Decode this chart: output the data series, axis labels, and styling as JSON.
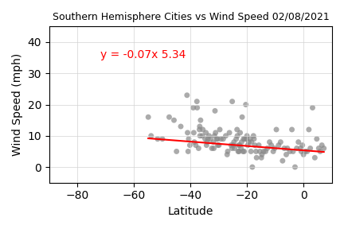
{
  "title": "Southern Hemisphere Cities vs Wind Speed 02/08/2021",
  "xlabel": "Latitude",
  "ylabel": "Wind Speed (mph)",
  "equation_text": "y = -0.07x 5.34",
  "equation_color": "red",
  "equation_x": -72,
  "equation_y": 35,
  "slope": -0.07,
  "intercept": 5.34,
  "line_x_start": -55.0,
  "line_x_end": 7.1,
  "line_color": "red",
  "scatter_color": "#888888",
  "scatter_alpha": 0.7,
  "scatter_size": 25,
  "xlim": [
    -90,
    10
  ],
  "ylim": [
    -5,
    45
  ],
  "xticks": [
    -80,
    -60,
    -40,
    -20,
    0
  ],
  "yticks": [
    0,
    10,
    20,
    30,
    40
  ],
  "grid": true,
  "figsize": [
    4.32,
    2.88
  ],
  "dpi": 100,
  "latitudes": [
    -55.0,
    -54.0,
    -51.7,
    -50.0,
    -47.6,
    -45.9,
    -45.0,
    -43.5,
    -41.3,
    -41.1,
    -40.9,
    -40.7,
    -40.3,
    -39.1,
    -38.9,
    -38.7,
    -38.2,
    -37.8,
    -37.7,
    -37.2,
    -36.9,
    -36.8,
    -36.7,
    -36.5,
    -35.9,
    -35.7,
    -34.9,
    -34.6,
    -34.4,
    -34.2,
    -33.9,
    -33.5,
    -33.0,
    -32.5,
    -32.0,
    -31.8,
    -31.6,
    -31.4,
    -31.2,
    -30.8,
    -30.5,
    -30.4,
    -30.0,
    -29.7,
    -29.3,
    -28.5,
    -27.6,
    -27.1,
    -26.9,
    -26.3,
    -25.7,
    -25.4,
    -25.3,
    -24.9,
    -24.7,
    -24.5,
    -23.9,
    -23.6,
    -23.5,
    -23.2,
    -23.0,
    -22.9,
    -22.7,
    -22.5,
    -22.2,
    -22.0,
    -21.8,
    -21.5,
    -21.3,
    -21.1,
    -20.9,
    -20.5,
    -20.3,
    -20.1,
    -19.8,
    -19.5,
    -19.0,
    -18.7,
    -18.5,
    -18.2,
    -17.8,
    -17.6,
    -17.3,
    -16.9,
    -16.7,
    -15.9,
    -15.5,
    -15.0,
    -14.8,
    -14.2,
    -13.5,
    -12.9,
    -12.1,
    -11.5,
    -10.8,
    -10.3,
    -9.7,
    -8.9,
    -8.2,
    -7.5,
    -6.9,
    -6.2,
    -5.8,
    -4.9,
    -4.2,
    -3.8,
    -3.1,
    -2.5,
    -1.9,
    -1.2,
    -0.9,
    -0.5,
    -0.1,
    0.5,
    1.2,
    1.8,
    2.3,
    3.1,
    3.9,
    4.6,
    5.3,
    5.8,
    6.4,
    7.1
  ],
  "wind_speeds": [
    16,
    10,
    9,
    9,
    16,
    15,
    5,
    13,
    23,
    11,
    5,
    9,
    7,
    19,
    11,
    8,
    7,
    21,
    19,
    6,
    12,
    13,
    10,
    15,
    10,
    12,
    9,
    11,
    7,
    8,
    9,
    10,
    9,
    6,
    8,
    6,
    10,
    18,
    11,
    9,
    9,
    7,
    7,
    12,
    9,
    9,
    10,
    4,
    5,
    11,
    7,
    6,
    21,
    7,
    8,
    6,
    9,
    12,
    10,
    5,
    7,
    5,
    7,
    11,
    6,
    8,
    16,
    5,
    9,
    5,
    9,
    20,
    9,
    10,
    7,
    8,
    9,
    5,
    8,
    0,
    10,
    9,
    7,
    5,
    3,
    7,
    5,
    3,
    4,
    5,
    5,
    6,
    8,
    7,
    5,
    6,
    12,
    7,
    8,
    2,
    6,
    4,
    6,
    5,
    12,
    5,
    0,
    6,
    8,
    6,
    5,
    7,
    4,
    5,
    5,
    12,
    6,
    19,
    3,
    9,
    6,
    5,
    7,
    6
  ]
}
